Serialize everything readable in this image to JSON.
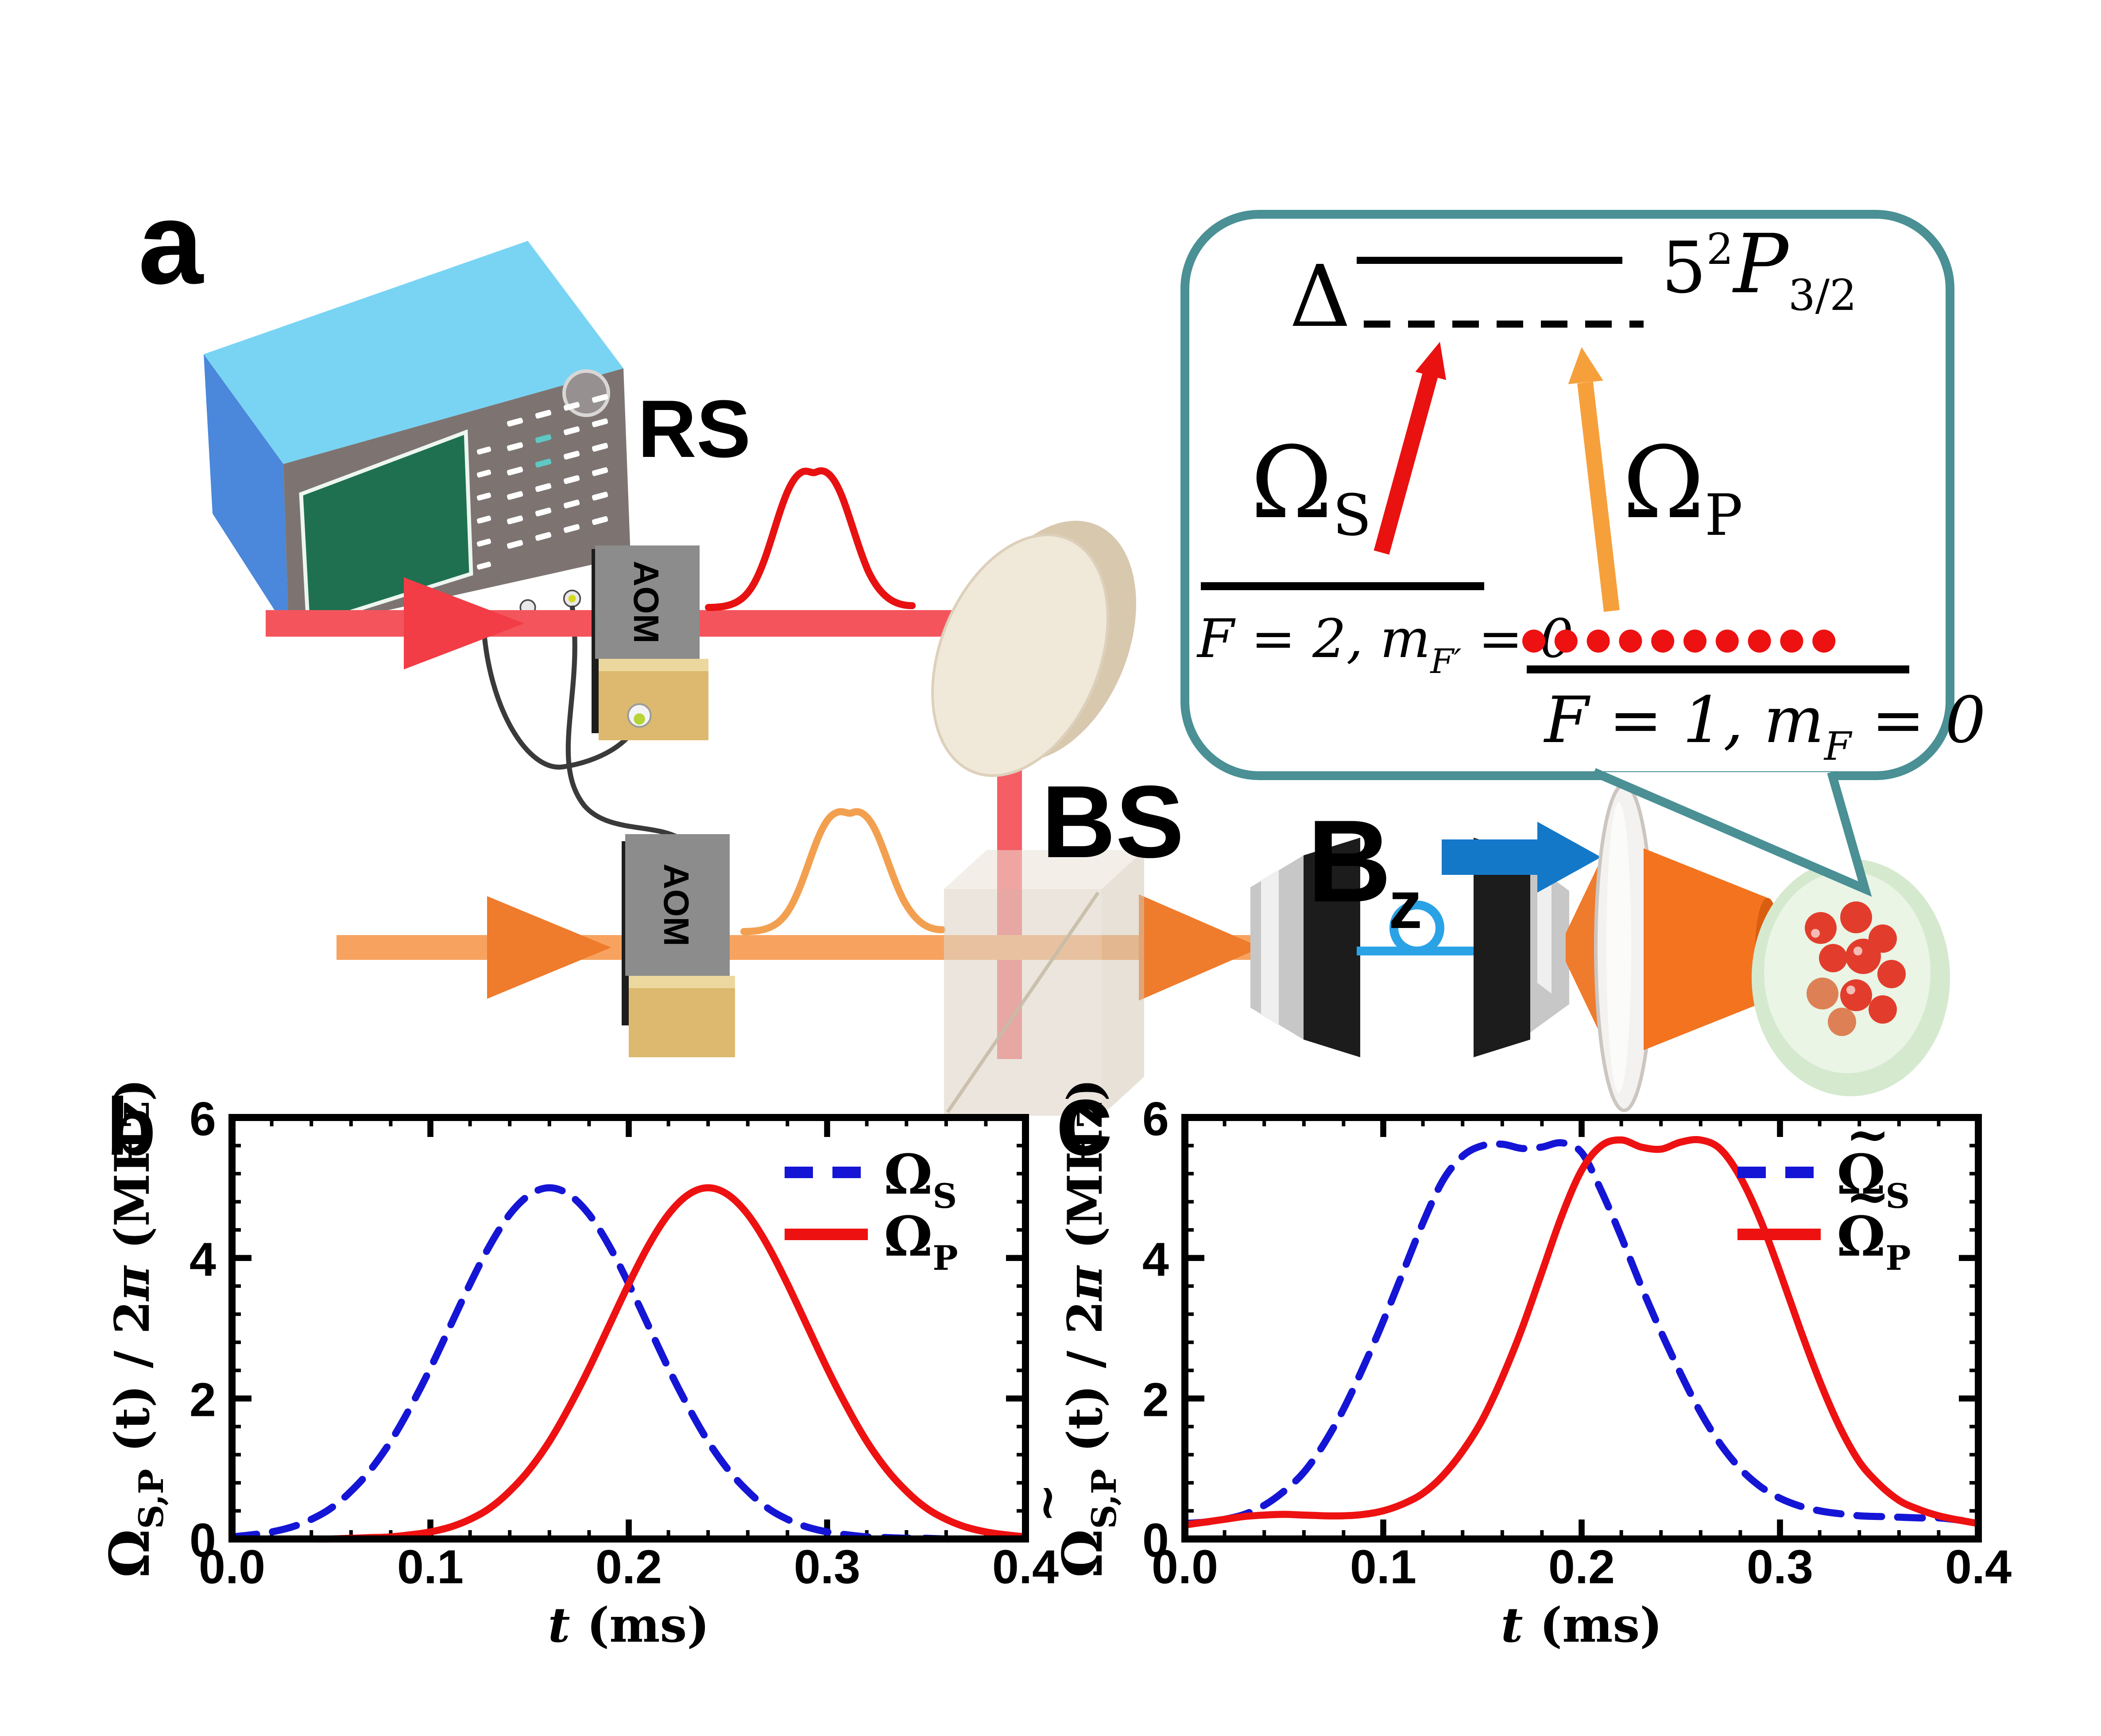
{
  "panels": {
    "a": "a",
    "b": "b",
    "c": "c"
  },
  "apparatus": {
    "rs_label": "RS",
    "aom1_label": "AOM",
    "aom2_label": "AOM",
    "bs_label": "BS",
    "bz_main": "B",
    "bz_sub": "z"
  },
  "inset": {
    "delta": "Δ",
    "excited_5": "5",
    "excited_sup": "2",
    "excited_P": "P",
    "excited_sub": "3/2",
    "omega_s": "Ω",
    "omega_s_sub": "S",
    "omega_p": "Ω",
    "omega_p_sub": "P",
    "left_level_1": "F = 2, m",
    "left_level_sub": "F′",
    "left_level_2": " = 0",
    "right_level_1": "F = 1, m",
    "right_level_sub": "F",
    "right_level_2": " = 0"
  },
  "colors": {
    "beam_red": "#f4555d",
    "arrow_red": "#f23c46",
    "beam_orange": "#f7a35f",
    "arrow_orange": "#ef7b2c",
    "pulse_red": "#e81111",
    "pulse_orange": "#f2a050",
    "fiber_blue": "#2aa2e6",
    "field_blue": "#1478c8",
    "bubble_teal": "#4a9095",
    "inset_red_arrow": "#ea1111",
    "inset_orange_arrow": "#f6a03c",
    "atom_red": "#e23d2c",
    "series_blue": "#1515d6",
    "series_red": "#ee1111"
  },
  "chart_data": [
    {
      "id": "b",
      "type": "line",
      "panel_label": "b",
      "title": "",
      "xlabel_main": "t",
      "xlabel_unit": " (ms)",
      "ylabel_tilde": "",
      "ylabel_omega": "Ω",
      "ylabel_sub": "S,P",
      "ylabel_mid": " (t) / 2",
      "ylabel_pi": "π",
      "ylabel_unit": " (MHz)",
      "xlim": [
        0,
        0.4
      ],
      "ylim": [
        0,
        6
      ],
      "xticks": [
        0,
        0.1,
        0.2,
        0.3,
        0.4
      ],
      "xtick_labels": [
        "0.0",
        "0.1",
        "0.2",
        "0.3",
        "0.4"
      ],
      "x_minor_step": 0.02,
      "yticks": [
        0,
        2,
        4,
        6
      ],
      "ytick_labels": [
        "0",
        "2",
        "4",
        "6"
      ],
      "y_minor_step": 0.4,
      "grid": false,
      "legend_position": "top-right",
      "x0": 0,
      "dx": 0.01,
      "series": [
        {
          "name": "Ω",
          "name_sub": "S",
          "tilde": false,
          "color": "#1515d6",
          "dash": true,
          "y": [
            0.03,
            0.06,
            0.1,
            0.17,
            0.28,
            0.44,
            0.68,
            0.99,
            1.39,
            1.88,
            2.43,
            3.03,
            3.63,
            4.18,
            4.62,
            4.9,
            5.0,
            4.9,
            4.62,
            4.18,
            3.63,
            3.03,
            2.43,
            1.88,
            1.39,
            0.99,
            0.68,
            0.44,
            0.28,
            0.17,
            0.1,
            0.06,
            0.03,
            0.02,
            0.01,
            0.01,
            0.0,
            0.0,
            0.0,
            0.0,
            0.0
          ]
        },
        {
          "name": "Ω",
          "name_sub": "P",
          "tilde": false,
          "color": "#ee1111",
          "dash": false,
          "y": [
            0.0,
            0.0,
            0.0,
            0.0,
            0.0,
            0.0,
            0.01,
            0.02,
            0.03,
            0.06,
            0.1,
            0.17,
            0.28,
            0.44,
            0.68,
            0.99,
            1.39,
            1.88,
            2.43,
            3.03,
            3.63,
            4.18,
            4.62,
            4.9,
            5.0,
            4.9,
            4.62,
            4.18,
            3.63,
            3.03,
            2.43,
            1.88,
            1.39,
            0.99,
            0.68,
            0.44,
            0.28,
            0.17,
            0.1,
            0.06,
            0.03
          ]
        }
      ]
    },
    {
      "id": "c",
      "type": "line",
      "panel_label": "c",
      "title": "",
      "xlabel_main": "t",
      "xlabel_unit": " (ms)",
      "ylabel_tilde": "~",
      "ylabel_omega": "Ω",
      "ylabel_sub": "S,P",
      "ylabel_mid": " (t) / 2",
      "ylabel_pi": "π",
      "ylabel_unit": " (MHz)",
      "xlim": [
        0,
        0.4
      ],
      "ylim": [
        0,
        6
      ],
      "xticks": [
        0,
        0.1,
        0.2,
        0.3,
        0.4
      ],
      "xtick_labels": [
        "0.0",
        "0.1",
        "0.2",
        "0.3",
        "0.4"
      ],
      "x_minor_step": 0.02,
      "yticks": [
        0,
        2,
        4,
        6
      ],
      "ytick_labels": [
        "0",
        "2",
        "4",
        "6"
      ],
      "y_minor_step": 0.4,
      "grid": false,
      "legend_position": "top-right",
      "x0": 0,
      "dx": 0.01,
      "series": [
        {
          "name": "Ω",
          "name_sub": "S",
          "tilde": true,
          "color": "#1515d6",
          "dash": true,
          "y": [
            0.22,
            0.24,
            0.28,
            0.35,
            0.48,
            0.68,
            0.95,
            1.35,
            1.85,
            2.45,
            3.1,
            3.8,
            4.5,
            5.1,
            5.45,
            5.6,
            5.62,
            5.56,
            5.58,
            5.64,
            5.5,
            4.95,
            4.3,
            3.6,
            2.95,
            2.35,
            1.8,
            1.35,
            1.0,
            0.75,
            0.58,
            0.47,
            0.4,
            0.36,
            0.33,
            0.32,
            0.31,
            0.3,
            0.3,
            0.27,
            0.22
          ]
        },
        {
          "name": "Ω",
          "name_sub": "P",
          "tilde": true,
          "color": "#ee1111",
          "dash": false,
          "y": [
            0.2,
            0.24,
            0.28,
            0.32,
            0.34,
            0.35,
            0.34,
            0.33,
            0.33,
            0.35,
            0.4,
            0.5,
            0.65,
            0.9,
            1.25,
            1.7,
            2.3,
            3.0,
            3.8,
            4.6,
            5.25,
            5.6,
            5.68,
            5.58,
            5.55,
            5.65,
            5.68,
            5.55,
            5.15,
            4.55,
            3.8,
            3.0,
            2.25,
            1.6,
            1.1,
            0.78,
            0.55,
            0.42,
            0.33,
            0.27,
            0.22
          ]
        }
      ]
    }
  ]
}
